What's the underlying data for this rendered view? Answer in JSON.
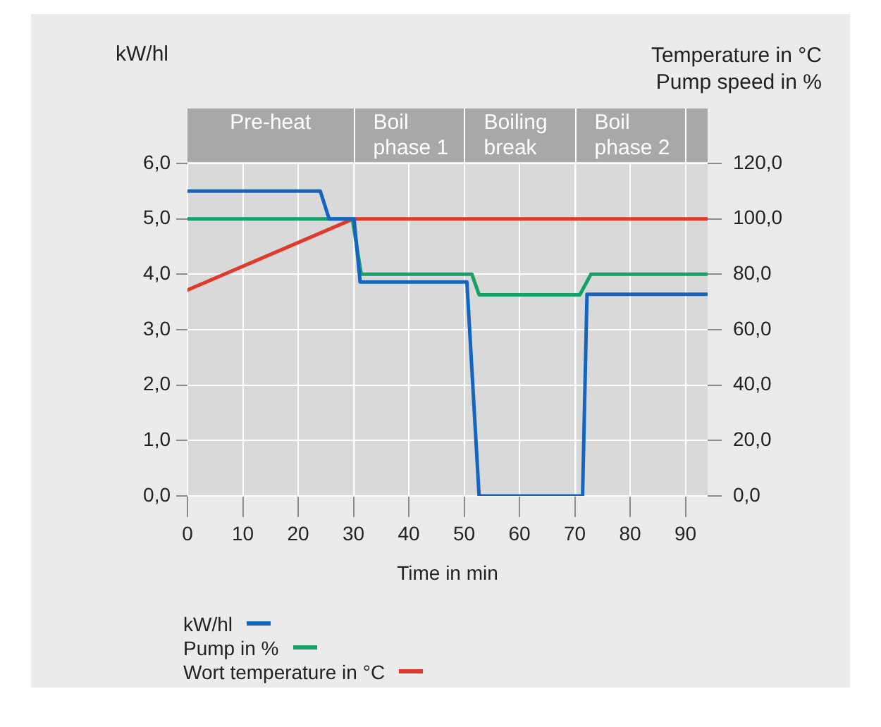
{
  "chart_data": {
    "type": "line",
    "xlabel": "Time in min",
    "ylabel": "kW/hl",
    "y2label": "Temperature in °C\nPump speed in %",
    "xlim": [
      0,
      94
    ],
    "xticks": [
      0,
      10,
      20,
      30,
      40,
      50,
      60,
      70,
      80,
      90
    ],
    "ylim": [
      0,
      6
    ],
    "yticks": [
      {
        "value": 0,
        "label": "0,0"
      },
      {
        "value": 1,
        "label": "1,0"
      },
      {
        "value": 2,
        "label": "2,0"
      },
      {
        "value": 3,
        "label": "3,0"
      },
      {
        "value": 4,
        "label": "4,0"
      },
      {
        "value": 5,
        "label": "5,0"
      },
      {
        "value": 6,
        "label": "6,0"
      }
    ],
    "y2lim": [
      0,
      120
    ],
    "y2ticks": [
      {
        "value": 0,
        "label": "0,0"
      },
      {
        "value": 20,
        "label": "20,0"
      },
      {
        "value": 40,
        "label": "40,0"
      },
      {
        "value": 60,
        "label": "60,0"
      },
      {
        "value": 80,
        "label": "80,0"
      },
      {
        "value": 100,
        "label": "100,0"
      },
      {
        "value": 120,
        "label": "120,0"
      }
    ],
    "grid": true,
    "legend": "bottom",
    "marker": "none",
    "line_style": "solid",
    "bands": [
      {
        "axis": "x",
        "from": 0,
        "to": 30,
        "label": "Pre-heat",
        "color": "#d9d9d9"
      },
      {
        "axis": "x",
        "from": 30,
        "to": 50,
        "label": "Boil phase 1",
        "color": "#d9d9d9"
      },
      {
        "axis": "x",
        "from": 50,
        "to": 70,
        "label": "Boiling break",
        "color": "#d9d9d9"
      },
      {
        "axis": "x",
        "from": 70,
        "to": 90,
        "label": "Boil phase 2",
        "color": "#d9d9d9"
      },
      {
        "axis": "x",
        "from": 90,
        "to": 94,
        "color": "#d9d9d9"
      }
    ],
    "series": [
      {
        "name": "kW/hl",
        "color": "#1565c0",
        "x": [
          0,
          24,
          25.6,
          30.1,
          31.2,
          50.5,
          52.7,
          71.4,
          72.2,
          94
        ],
        "values": [
          5.5,
          5.5,
          5.0,
          5.0,
          3.86,
          3.86,
          0,
          0,
          3.64,
          3.64
        ]
      },
      {
        "name": "Pump in %",
        "color": "#16a06a",
        "axis": "y2",
        "x": [
          0,
          29.8,
          31.4,
          51.4,
          52.7,
          70.9,
          72.9,
          94
        ],
        "values": [
          100,
          100,
          80,
          80,
          72.6,
          72.6,
          80,
          80
        ]
      },
      {
        "name": "Wort temperature in °C",
        "color": "#e03a2e",
        "axis": "y2",
        "x": [
          0,
          30,
          94
        ],
        "values": [
          74.3,
          100,
          100
        ]
      }
    ]
  }
}
